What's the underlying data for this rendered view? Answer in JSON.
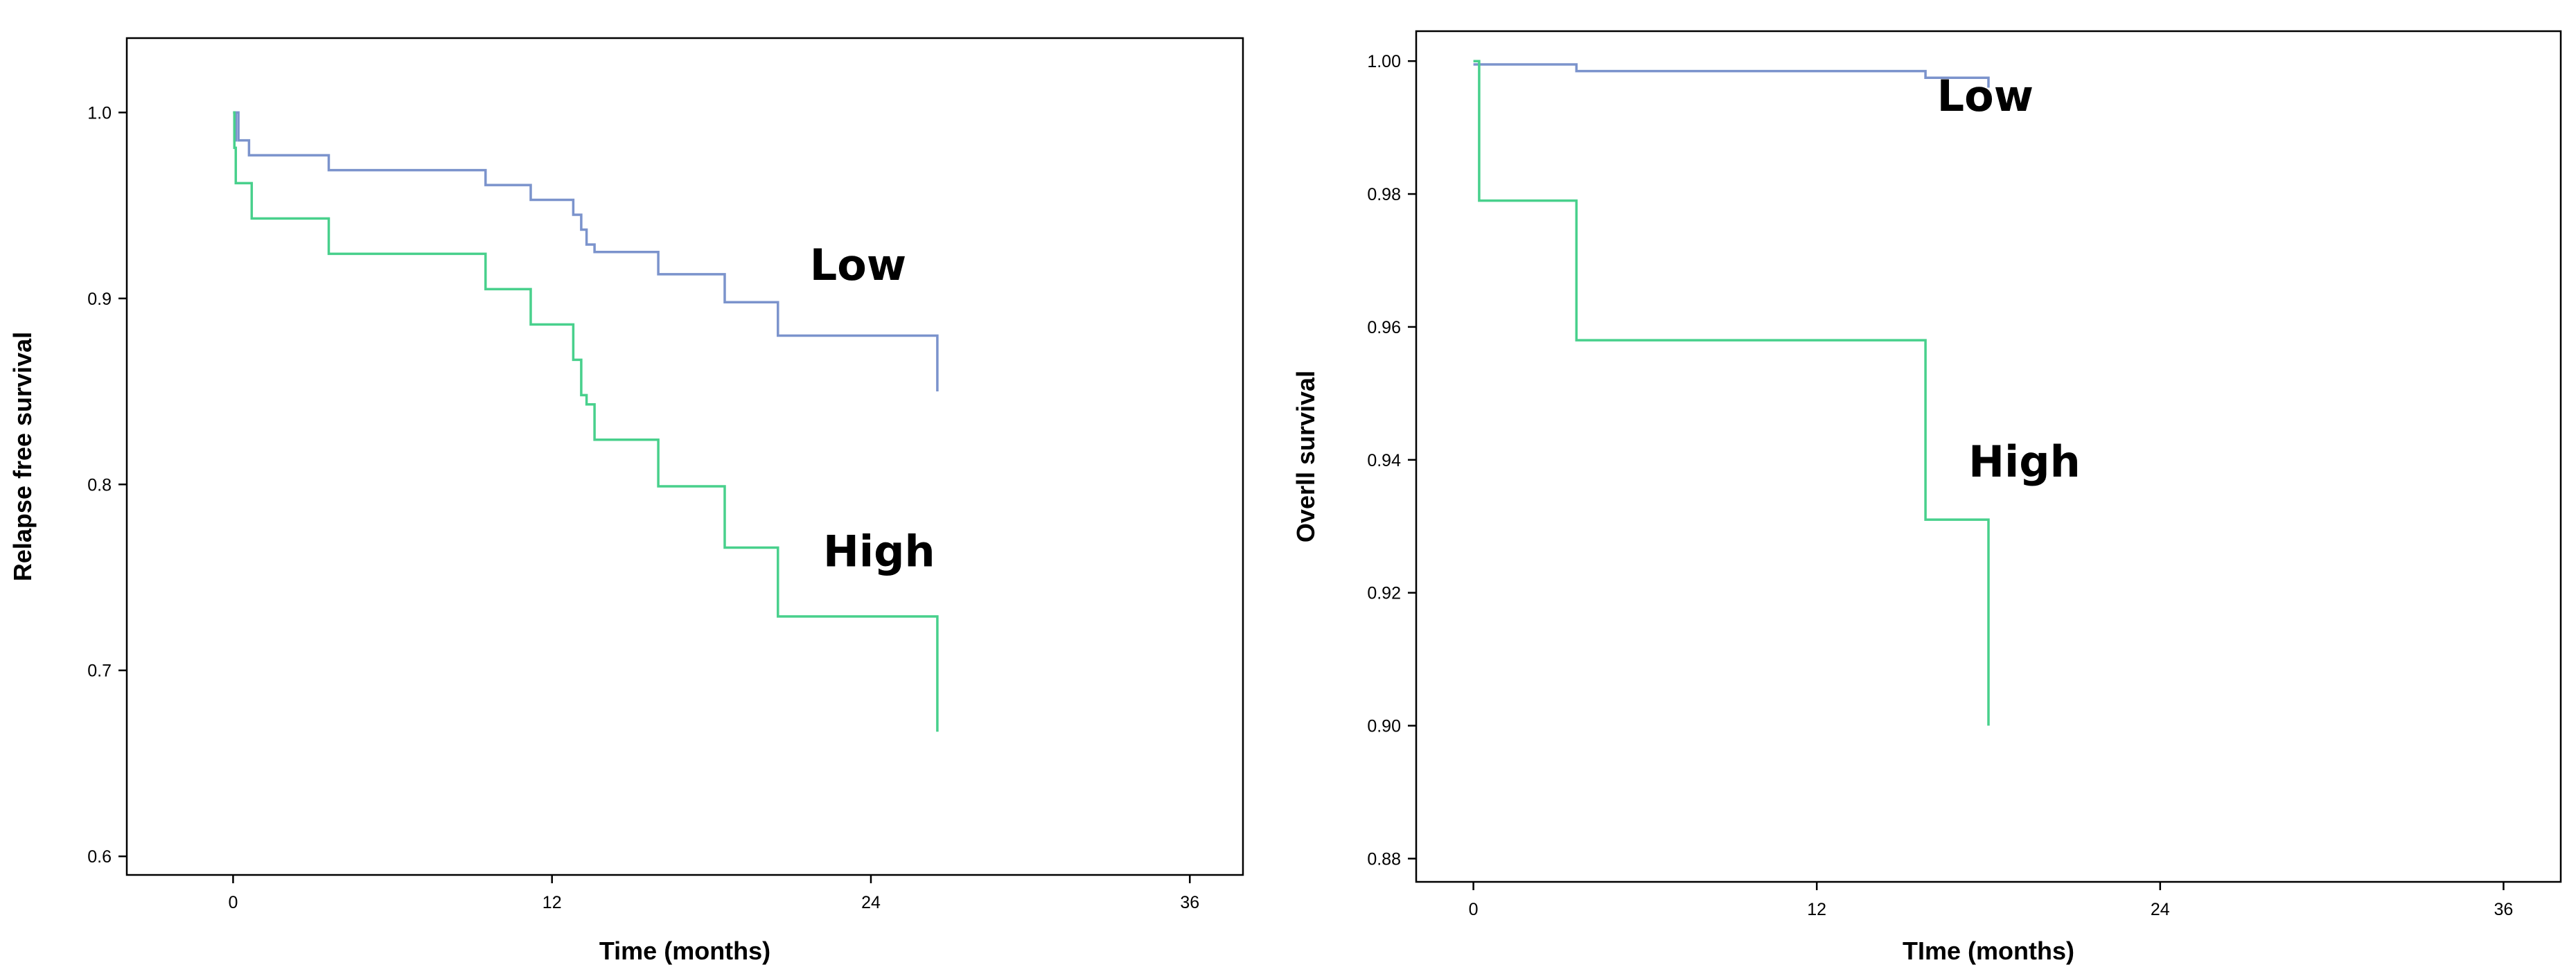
{
  "chart_data": [
    {
      "type": "line",
      "step": true,
      "xlabel": "Time (months)",
      "ylabel": "Relapse free survival",
      "xlim": [
        -4,
        38
      ],
      "ylim": [
        0.59,
        1.04
      ],
      "xticks": [
        0,
        12,
        24,
        36
      ],
      "yticks": [
        0.6,
        0.7,
        0.8,
        0.9,
        1.0
      ],
      "ytick_labels": [
        "0.6",
        "0.7",
        "0.8",
        "0.9",
        "1.0"
      ],
      "grid": false,
      "series": [
        {
          "name": "Low",
          "color": "#7b93cc",
          "x": [
            0,
            0.05,
            0.1,
            0.2,
            0.3,
            0.6,
            3.6,
            9.5,
            11.2,
            12.8,
            13.1,
            13.3,
            13.6,
            16,
            18.5,
            20.5,
            26.5,
            26.5
          ],
          "y": [
            1.0,
            0.985,
            1.0,
            0.985,
            0.985,
            0.977,
            0.969,
            0.961,
            0.953,
            0.945,
            0.937,
            0.929,
            0.925,
            0.913,
            0.898,
            0.88,
            0.88,
            0.85
          ]
        },
        {
          "name": "High",
          "color": "#48d08c",
          "x": [
            0,
            0.05,
            0.1,
            0.3,
            0.7,
            3.6,
            9.5,
            11.2,
            12.8,
            13.1,
            13.3,
            13.6,
            16,
            18.5,
            20.5,
            26.5,
            26.5
          ],
          "y": [
            1.0,
            0.981,
            0.962,
            0.962,
            0.943,
            0.924,
            0.905,
            0.886,
            0.867,
            0.848,
            0.843,
            0.824,
            0.799,
            0.766,
            0.729,
            0.729,
            0.667
          ]
        }
      ],
      "annotations": [
        {
          "text": "Low",
          "x": 21.7,
          "y": 0.91
        },
        {
          "text": "High",
          "x": 22.2,
          "y": 0.756
        }
      ]
    },
    {
      "type": "line",
      "step": true,
      "xlabel": "TIme (months)",
      "ylabel": "Overll survival",
      "xlim": [
        -2,
        38
      ],
      "ylim": [
        0.8765,
        1.0045
      ],
      "xticks": [
        0,
        12,
        24,
        36
      ],
      "yticks": [
        0.88,
        0.9,
        0.92,
        0.94,
        0.96,
        0.98,
        1.0
      ],
      "ytick_labels": [
        "0.88",
        "0.90",
        "0.92",
        "0.94",
        "0.96",
        "0.98",
        "1.00"
      ],
      "grid": false,
      "series": [
        {
          "name": "Low",
          "color": "#7b93cc",
          "x": [
            0,
            3.6,
            15.8,
            18.0,
            18.0
          ],
          "y": [
            0.9995,
            0.9985,
            0.9975,
            0.997,
            0.996
          ]
        },
        {
          "name": "High",
          "color": "#48d08c",
          "x": [
            0,
            0.2,
            3.6,
            15.8,
            18.0,
            18.0
          ],
          "y": [
            1.0,
            0.979,
            0.958,
            0.931,
            0.931,
            0.9
          ]
        }
      ],
      "annotations": [
        {
          "text": "Low",
          "x": 16.2,
          "y": 0.9925
        },
        {
          "text": "High",
          "x": 17.3,
          "y": 0.9375
        }
      ]
    }
  ]
}
